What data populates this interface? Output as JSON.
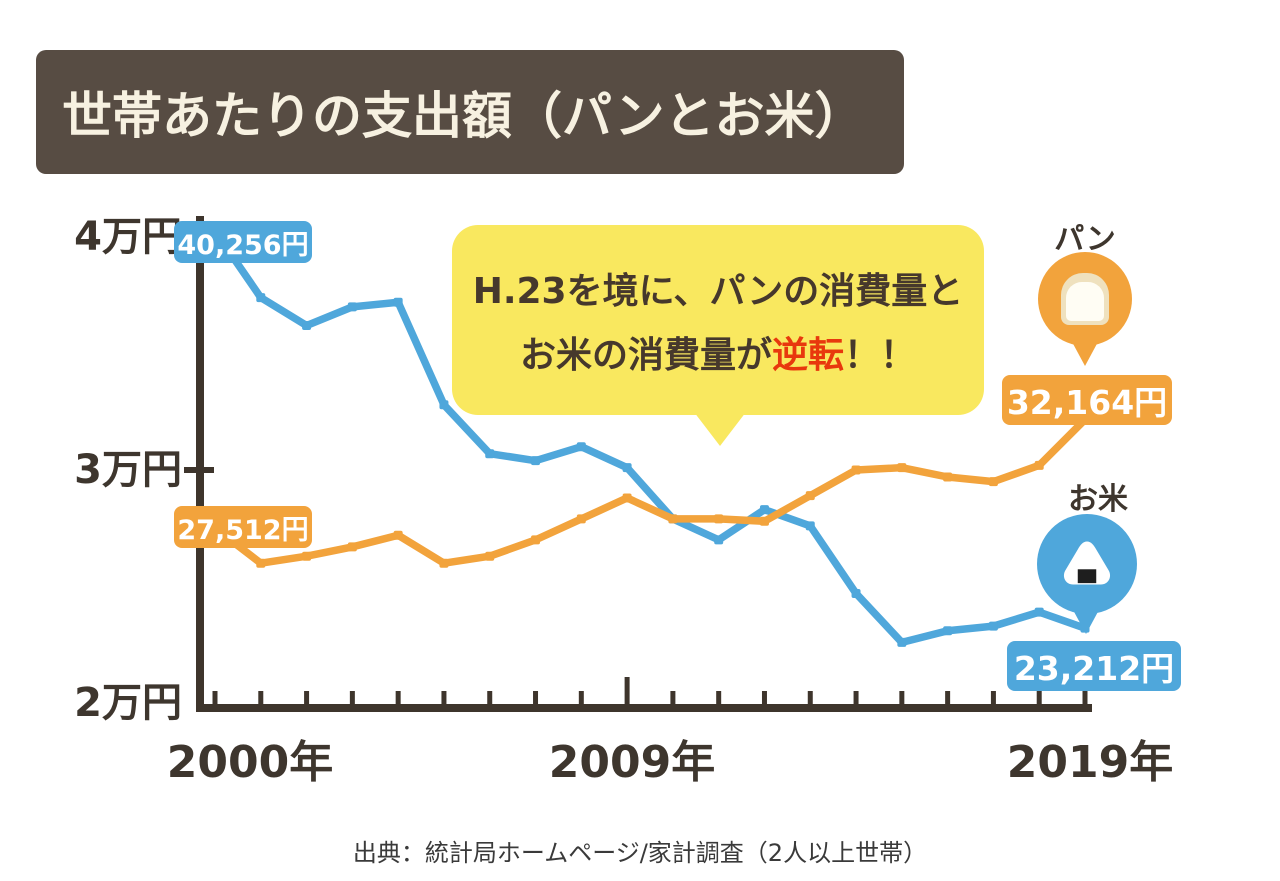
{
  "page": {
    "title": "世帯あたりの支出額（パンとお米）",
    "source": "出典：統計局ホームページ/家計調査（2人以上世帯）"
  },
  "axis": {
    "y_ticks": [
      "4万円",
      "3万円",
      "2万円"
    ],
    "x_ticks": [
      "2000年",
      "2009年",
      "2019年"
    ]
  },
  "labels": {
    "bread": "パン",
    "rice": "お米"
  },
  "badges": {
    "rice_start": "40,256円",
    "bread_start": "27,512円",
    "bread_end": "32,164円",
    "rice_end": "23,212円"
  },
  "callout": {
    "line1": "H.23を境に、パンの消費量と",
    "line2_pre": "お米の消費量が",
    "line2_highlight": "逆転",
    "line2_post": "！！"
  },
  "colors": {
    "rice_blue": "#4FA7DB",
    "bread_orange": "#F2A33C",
    "banner_brown": "#574C43",
    "callout_yellow": "#F9E85F",
    "highlight_red": "#E8380D",
    "axis_brown": "#3E352C"
  },
  "chart_data": {
    "type": "line",
    "title": "世帯あたりの支出額（パンとお米）",
    "x": [
      2000,
      2001,
      2002,
      2003,
      2004,
      2005,
      2006,
      2007,
      2008,
      2009,
      2010,
      2011,
      2012,
      2013,
      2014,
      2015,
      2016,
      2017,
      2018,
      2019
    ],
    "x_unit": "年",
    "y_unit": "円",
    "ylim": [
      20000,
      41000
    ],
    "yticks": [
      {
        "value": 20000,
        "label": "2万円"
      },
      {
        "value": 30000,
        "label": "3万円"
      },
      {
        "value": 40000,
        "label": "4万円"
      }
    ],
    "grid": false,
    "legend_position": "right-balloons",
    "series": [
      {
        "name": "お米",
        "color": "#4FA7DB",
        "values": [
          40256,
          37400,
          36200,
          37000,
          37200,
          32800,
          30700,
          30400,
          31000,
          30100,
          27900,
          27000,
          28300,
          27600,
          24700,
          22600,
          23100,
          23300,
          23900,
          23212
        ]
      },
      {
        "name": "パン",
        "color": "#F2A33C",
        "values": [
          27512,
          26000,
          26300,
          26700,
          27200,
          26000,
          26300,
          27000,
          27900,
          28800,
          27900,
          27900,
          27800,
          28900,
          30000,
          30100,
          29700,
          29500,
          30200,
          32164
        ]
      }
    ],
    "annotation": "H.23を境に、パンの消費量とお米の消費量が逆転！！"
  }
}
